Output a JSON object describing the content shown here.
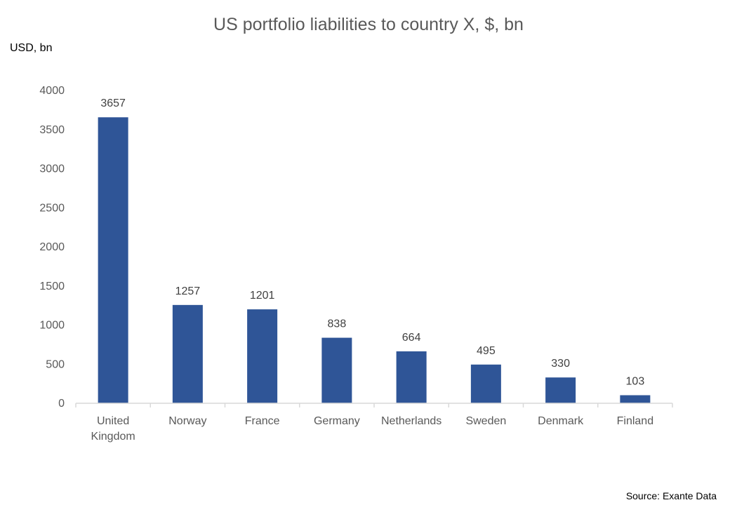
{
  "chart_data": {
    "type": "bar",
    "title": "US portfolio liabilities to country X, $, bn",
    "ylabel": "USD, bn",
    "xlabel": "",
    "categories": [
      [
        "United",
        "Kingdom"
      ],
      [
        "Norway"
      ],
      [
        "France"
      ],
      [
        "Germany"
      ],
      [
        "Netherlands"
      ],
      [
        "Sweden"
      ],
      [
        "Denmark"
      ],
      [
        "Finland"
      ]
    ],
    "values": [
      3657,
      1257,
      1201,
      838,
      664,
      495,
      330,
      103
    ],
    "ylim": [
      0,
      4000
    ],
    "yticks": [
      0,
      500,
      1000,
      1500,
      2000,
      2500,
      3000,
      3500,
      4000
    ],
    "grid": false,
    "legend": "none",
    "bar_color": "#2F5597",
    "axis_color": "#D9D9D9",
    "source": "Source: Exante Data"
  }
}
